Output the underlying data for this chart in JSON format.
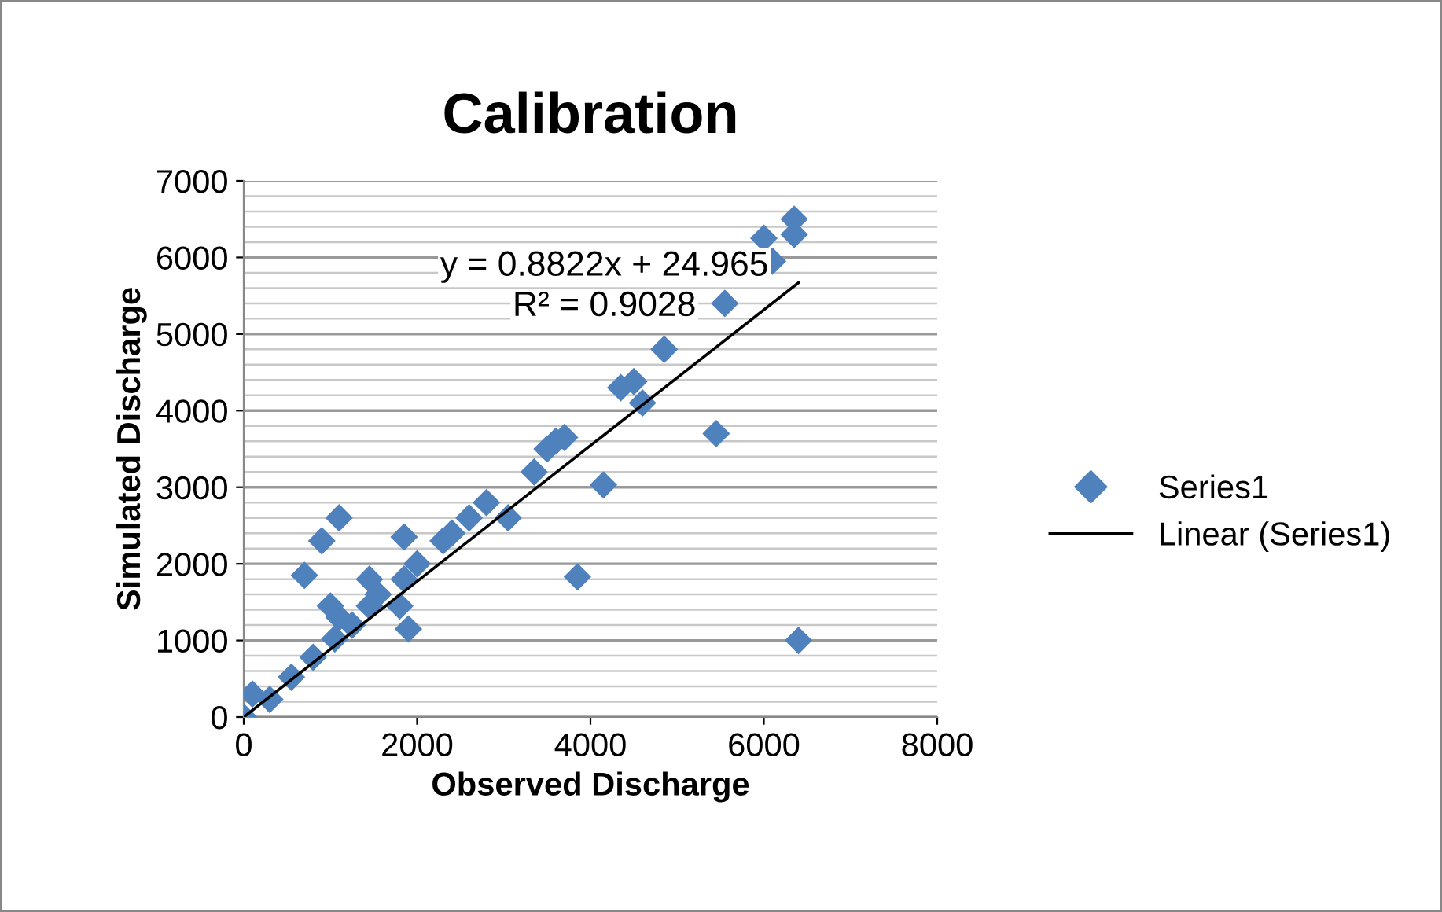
{
  "chart_data": {
    "type": "scatter",
    "title": "Calibration",
    "xlabel": "Observed Discharge",
    "ylabel": "Simulated Discharge",
    "xlim": [
      0,
      8000
    ],
    "xticks": [
      0,
      2000,
      4000,
      6000,
      8000
    ],
    "ylim": [
      0,
      7000
    ],
    "yticks": [
      0,
      1000,
      2000,
      3000,
      4000,
      5000,
      6000,
      7000
    ],
    "grid": "y",
    "legend": "right",
    "annotations": [
      "y = 0.8822x + 24.965",
      "R² = 0.9028"
    ],
    "series": [
      {
        "name": "Series1",
        "color": "#4f81bd",
        "marker": "diamond",
        "x": [
          0,
          100,
          300,
          550,
          800,
          1050,
          1250,
          700,
          900,
          1100,
          1000,
          1100,
          1450,
          1450,
          1550,
          1800,
          1850,
          1900,
          1850,
          2000,
          2300,
          2400,
          2600,
          2800,
          3050,
          3350,
          3500,
          3600,
          3700,
          3850,
          4150,
          4350,
          4500,
          4600,
          4850,
          5450,
          5550,
          6000,
          6100,
          6350,
          6350,
          6400
        ],
        "values": [
          0,
          300,
          230,
          520,
          780,
          1020,
          1200,
          1850,
          2300,
          2600,
          1450,
          1300,
          1800,
          1450,
          1600,
          1450,
          1800,
          1150,
          2350,
          2000,
          2300,
          2400,
          2600,
          2800,
          2600,
          3200,
          3500,
          3600,
          3650,
          1830,
          3030,
          4300,
          4380,
          4100,
          4800,
          3700,
          5400,
          6250,
          5950,
          6500,
          6300,
          1000
        ]
      },
      {
        "name": "Linear (Series1)",
        "color": "#000000",
        "type": "line",
        "x": [
          0,
          6400
        ],
        "values": [
          0,
          5670
        ]
      }
    ]
  }
}
